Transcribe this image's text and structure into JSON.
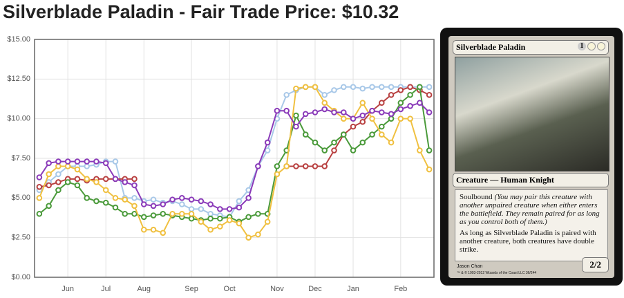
{
  "header": {
    "title": "Silverblade Paladin - Fair Trade Price: $10.32"
  },
  "chart_data": {
    "type": "line",
    "categories": [
      null,
      null,
      null,
      "Jun",
      null,
      null,
      null,
      "Jul",
      null,
      null,
      null,
      "Aug",
      null,
      null,
      null,
      null,
      "Sep",
      null,
      null,
      null,
      "Oct",
      null,
      null,
      null,
      null,
      "Nov",
      null,
      null,
      null,
      "Dec",
      null,
      null,
      null,
      "Jan",
      null,
      null,
      null,
      null,
      "Feb",
      null,
      null,
      null
    ],
    "ylim": [
      0,
      15
    ],
    "yticks": [
      {
        "value": 0,
        "label": "$0.00"
      },
      {
        "value": 2.5,
        "label": "$2.50"
      },
      {
        "value": 5,
        "label": "$5.00"
      },
      {
        "value": 7.5,
        "label": "$7.50"
      },
      {
        "value": 10,
        "label": "$10.00"
      },
      {
        "value": 12.5,
        "label": "$12.50"
      },
      {
        "value": 15,
        "label": "$15.00"
      }
    ],
    "grid": true,
    "series": [
      {
        "color": "#a8c8e8",
        "values": [
          5.5,
          6.0,
          6.5,
          7.0,
          7.0,
          7.0,
          7.1,
          7.3,
          7.3,
          5.0,
          5.0,
          4.8,
          4.9,
          4.7,
          4.8,
          4.6,
          4.3,
          4.3,
          4.0,
          3.9,
          3.8,
          4.8,
          5.5,
          7.0,
          8.0,
          10.0,
          11.5,
          11.8,
          12.0,
          12.0,
          11.5,
          11.8,
          12.0,
          12.0,
          11.9,
          12.0,
          12.0,
          12.0,
          12.0,
          12.0,
          12.0,
          12.0
        ]
      },
      {
        "color": "#b84040",
        "values": [
          5.7,
          5.8,
          6.0,
          6.2,
          6.2,
          6.1,
          6.2,
          6.2,
          6.2,
          6.2,
          6.2,
          null,
          null,
          null,
          null,
          null,
          null,
          null,
          null,
          null,
          null,
          null,
          null,
          null,
          null,
          null,
          7.0,
          7.0,
          7.0,
          7.0,
          7.0,
          8.0,
          9.0,
          9.5,
          9.8,
          10.5,
          11.0,
          11.5,
          11.8,
          12.0,
          11.8,
          11.5
        ]
      },
      {
        "color": "#4a9a3a",
        "values": [
          4.0,
          4.5,
          5.5,
          6.0,
          5.8,
          5.0,
          4.8,
          4.7,
          4.4,
          4.0,
          4.0,
          3.8,
          3.9,
          4.0,
          3.9,
          3.8,
          3.7,
          3.6,
          3.7,
          3.7,
          3.8,
          3.5,
          3.8,
          4.0,
          4.0,
          7.0,
          8.0,
          10.2,
          9.0,
          8.5,
          8.0,
          8.5,
          9.0,
          8.0,
          8.5,
          9.0,
          9.5,
          10.0,
          11.0,
          11.5,
          12.0,
          8.0
        ]
      },
      {
        "color": "#f0c040",
        "values": [
          5.0,
          6.5,
          7.0,
          7.0,
          6.8,
          6.2,
          6.0,
          5.5,
          5.0,
          4.9,
          4.5,
          3.0,
          3.0,
          2.8,
          4.0,
          4.0,
          4.0,
          3.5,
          3.0,
          3.2,
          3.6,
          3.4,
          2.5,
          2.7,
          3.5,
          6.5,
          7.0,
          11.9,
          12.0,
          12.0,
          11.0,
          10.5,
          10.0,
          10.0,
          11.0,
          10.0,
          9.0,
          8.5,
          10.0,
          10.0,
          8.0,
          6.8
        ]
      },
      {
        "color": "#8a3ab9",
        "values": [
          6.3,
          7.2,
          7.3,
          7.3,
          7.3,
          7.3,
          7.3,
          7.2,
          6.2,
          6.0,
          5.8,
          4.6,
          4.5,
          4.6,
          4.9,
          5.0,
          4.9,
          4.8,
          4.6,
          4.3,
          4.3,
          4.4,
          5.0,
          7.0,
          8.5,
          10.5,
          10.5,
          9.5,
          10.3,
          10.4,
          10.6,
          10.4,
          10.4,
          10.0,
          10.2,
          10.5,
          10.4,
          10.3,
          10.6,
          10.8,
          11.0,
          10.4
        ]
      }
    ]
  },
  "card": {
    "name": "Silverblade Paladin",
    "mana": "1",
    "type_line": "Creature — Human Knight",
    "keyword": "Soulbound",
    "reminder": "(You may pair this creature with another unpaired creature when either enters the battlefield. They remain paired for as long as you control both of them.)",
    "rules": "As long as Silverblade Paladin is paired with another creature, both creatures have double strike.",
    "pt": "2/2",
    "artist": "Jason Chan",
    "copyright": "™ & © 1993-2012 Wizards of the Coast LLC 36/244"
  }
}
